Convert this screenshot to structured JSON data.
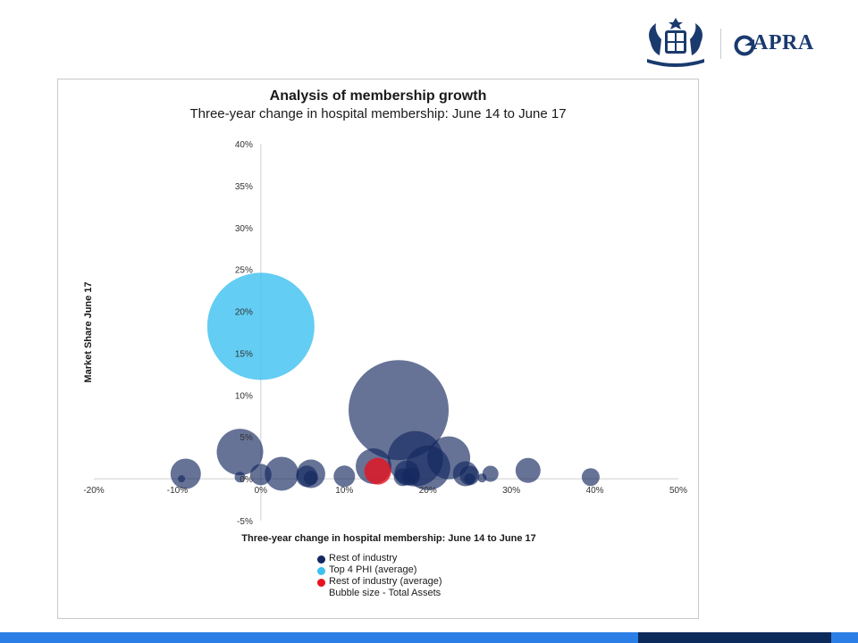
{
  "branding": {
    "logo_text": "APRA",
    "crest_icon": "commonwealth-coat-of-arms-icon",
    "brand_color": "#1a3a6e",
    "bar_color": "#2a7ee6",
    "bar_dark_color": "#0d2a5c"
  },
  "chart_data": {
    "type": "scatter",
    "subtype": "bubble",
    "title": "Analysis of membership growth",
    "subtitle": "Three-year change in hospital membership: June 14 to June 17",
    "xlabel": "Three-year change in hospital membership: June 14 to June 17",
    "ylabel": "Market Share June 17",
    "xlim": [
      -20,
      50
    ],
    "ylim": [
      -5,
      40
    ],
    "x_ticks": [
      -20,
      -10,
      0,
      10,
      20,
      30,
      40,
      50
    ],
    "y_ticks": [
      -5,
      0,
      5,
      10,
      15,
      20,
      25,
      30,
      35,
      40
    ],
    "x_tick_labels": [
      "-20%",
      "-10%",
      "0%",
      "10%",
      "20%",
      "30%",
      "40%",
      "50%"
    ],
    "y_tick_labels": [
      "-5%",
      "0%",
      "5%",
      "10%",
      "15%",
      "20%",
      "25%",
      "30%",
      "35%",
      "40%"
    ],
    "grid": false,
    "legend_position": "bottom",
    "legend": [
      {
        "label": "Rest of industry",
        "color": "#14285f"
      },
      {
        "label": "Top 4 PHI (average)",
        "color": "#3cc0f0"
      },
      {
        "label": "Rest of industry (average)",
        "color": "#e8121e"
      },
      {
        "label": "Bubble size - Total Assets",
        "color": null
      }
    ],
    "series": [
      {
        "name": "Rest of industry",
        "color": "#14285f",
        "opacity": 0.65,
        "points": [
          {
            "x": -9,
            "y": 0.6,
            "size": 17
          },
          {
            "x": -9.5,
            "y": 0.0,
            "size": 4
          },
          {
            "x": -2.5,
            "y": 3.2,
            "size": 26
          },
          {
            "x": -2.5,
            "y": 0.2,
            "size": 6
          },
          {
            "x": 0,
            "y": 0.5,
            "size": 12
          },
          {
            "x": 2.5,
            "y": 0.6,
            "size": 19
          },
          {
            "x": 5.5,
            "y": 0.3,
            "size": 12
          },
          {
            "x": 6,
            "y": 0.6,
            "size": 16
          },
          {
            "x": 6,
            "y": 0.1,
            "size": 8
          },
          {
            "x": 10,
            "y": 0.3,
            "size": 12
          },
          {
            "x": 13.5,
            "y": 1.5,
            "size": 20
          },
          {
            "x": 16.5,
            "y": 8.2,
            "size": 56
          },
          {
            "x": 17,
            "y": 0.2,
            "size": 10
          },
          {
            "x": 17.5,
            "y": 0.7,
            "size": 14
          },
          {
            "x": 18,
            "y": 0.3,
            "size": 10
          },
          {
            "x": 18.5,
            "y": 2.4,
            "size": 31
          },
          {
            "x": 20,
            "y": 1.3,
            "size": 25
          },
          {
            "x": 22.5,
            "y": 2.5,
            "size": 24
          },
          {
            "x": 24.5,
            "y": 0.6,
            "size": 14
          },
          {
            "x": 25,
            "y": 0.4,
            "size": 11
          },
          {
            "x": 25,
            "y": 0.0,
            "size": 6
          },
          {
            "x": 26.5,
            "y": 0.1,
            "size": 5
          },
          {
            "x": 27.5,
            "y": 0.6,
            "size": 9
          },
          {
            "x": 32,
            "y": 1.0,
            "size": 14
          },
          {
            "x": 39.5,
            "y": 0.2,
            "size": 10
          }
        ]
      },
      {
        "name": "Top 4 PHI (average)",
        "color": "#3cc0f0",
        "opacity": 0.8,
        "points": [
          {
            "x": 0,
            "y": 18.2,
            "size": 60
          }
        ]
      },
      {
        "name": "Rest of industry (average)",
        "color": "#e8121e",
        "opacity": 0.8,
        "points": [
          {
            "x": 14,
            "y": 0.9,
            "size": 15
          }
        ]
      }
    ]
  }
}
